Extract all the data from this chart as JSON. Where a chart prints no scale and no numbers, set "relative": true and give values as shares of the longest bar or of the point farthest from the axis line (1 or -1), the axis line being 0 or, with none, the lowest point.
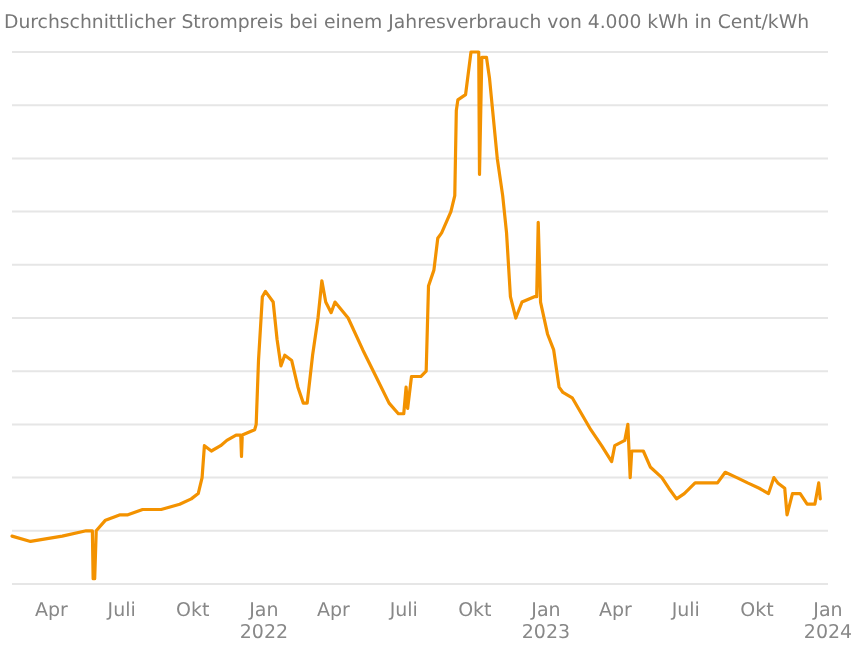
{
  "chart_data": {
    "type": "line",
    "title": "Durchschnittlicher Strompreis bei einem Jahresverbrauch von 4.000 kWh in Cent/kWh",
    "relative": true,
    "grid": "y",
    "marker": "none",
    "line_style": "solid",
    "xlim": [
      "2021-02-09",
      "2024-01-01"
    ],
    "xticks": [
      {
        "value": "2021-04-01",
        "label": "Apr"
      },
      {
        "value": "2021-07-01",
        "label": "Juli"
      },
      {
        "value": "2021-10-01",
        "label": "Okt"
      },
      {
        "value": "2022-01-01",
        "label": "Jan\n2022"
      },
      {
        "value": "2022-04-01",
        "label": "Apr"
      },
      {
        "value": "2022-07-01",
        "label": "Juli"
      },
      {
        "value": "2022-10-01",
        "label": "Okt"
      },
      {
        "value": "2023-01-01",
        "label": "Jan\n2023"
      },
      {
        "value": "2023-04-01",
        "label": "Apr"
      },
      {
        "value": "2023-07-01",
        "label": "Juli"
      },
      {
        "value": "2023-10-01",
        "label": "Okt"
      },
      {
        "value": "2024-01-01",
        "label": "Jan\n2024"
      }
    ],
    "x": [
      "2021-02-09",
      "2021-03-05",
      "2021-04-15",
      "2021-05-16",
      "2021-05-24",
      "2021-05-25",
      "2021-05-27",
      "2021-05-29",
      "2021-06-10",
      "2021-06-29",
      "2021-07-09",
      "2021-07-28",
      "2021-08-21",
      "2021-09-14",
      "2021-09-29",
      "2021-10-08",
      "2021-10-13",
      "2021-10-16",
      "2021-10-25",
      "2021-11-06",
      "2021-11-14",
      "2021-11-26",
      "2021-12-02",
      "2021-12-03",
      "2021-12-04",
      "2021-12-20",
      "2021-12-22",
      "2021-12-25",
      "2021-12-30",
      "2022-01-03",
      "2022-01-13",
      "2022-01-18",
      "2022-01-23",
      "2022-01-28",
      "2022-02-06",
      "2022-02-14",
      "2022-02-21",
      "2022-02-26",
      "2022-03-05",
      "2022-03-12",
      "2022-03-17",
      "2022-03-22",
      "2022-03-29",
      "2022-04-03",
      "2022-04-20",
      "2022-05-09",
      "2022-05-26",
      "2022-06-12",
      "2022-06-24",
      "2022-07-01",
      "2022-07-04",
      "2022-07-06",
      "2022-07-11",
      "2022-07-23",
      "2022-07-30",
      "2022-08-02",
      "2022-08-09",
      "2022-08-14",
      "2022-08-19",
      "2022-08-31",
      "2022-09-05",
      "2022-09-07",
      "2022-09-09",
      "2022-09-19",
      "2022-09-26",
      "2022-10-06",
      "2022-10-07",
      "2022-10-10",
      "2022-10-16",
      "2022-10-20",
      "2022-10-30",
      "2022-11-06",
      "2022-11-11",
      "2022-11-16",
      "2022-11-23",
      "2022-12-01",
      "2022-12-17",
      "2022-12-20",
      "2022-12-22",
      "2022-12-25",
      "2023-01-03",
      "2023-01-11",
      "2023-01-18",
      "2023-01-23",
      "2023-02-04",
      "2023-02-16",
      "2023-02-28",
      "2023-03-14",
      "2023-03-27",
      "2023-03-31",
      "2023-04-13",
      "2023-04-17",
      "2023-04-20",
      "2023-04-22",
      "2023-05-07",
      "2023-05-16",
      "2023-05-31",
      "2023-06-09",
      "2023-06-19",
      "2023-06-29",
      "2023-07-13",
      "2023-07-28",
      "2023-08-11",
      "2023-08-21",
      "2023-09-05",
      "2023-09-19",
      "2023-10-04",
      "2023-10-16",
      "2023-10-23",
      "2023-10-28",
      "2023-11-06",
      "2023-11-09",
      "2023-11-16",
      "2023-11-26",
      "2023-12-05",
      "2023-12-15",
      "2023-12-20",
      "2023-12-22"
    ],
    "series": [
      {
        "color": "#f39200",
        "values": [
          0.09,
          0.08,
          0.09,
          0.1,
          0.1,
          0.01,
          0.01,
          0.1,
          0.12,
          0.13,
          0.13,
          0.14,
          0.14,
          0.15,
          0.16,
          0.17,
          0.2,
          0.26,
          0.25,
          0.26,
          0.27,
          0.28,
          0.28,
          0.24,
          0.28,
          0.29,
          0.3,
          0.42,
          0.54,
          0.55,
          0.53,
          0.46,
          0.41,
          0.43,
          0.42,
          0.37,
          0.34,
          0.34,
          0.43,
          0.5,
          0.57,
          0.53,
          0.51,
          0.53,
          0.5,
          0.44,
          0.39,
          0.34,
          0.32,
          0.32,
          0.37,
          0.33,
          0.39,
          0.39,
          0.4,
          0.56,
          0.59,
          0.65,
          0.66,
          0.7,
          0.73,
          0.89,
          0.91,
          0.92,
          1.0,
          1.0,
          0.77,
          0.99,
          0.99,
          0.95,
          0.8,
          0.73,
          0.66,
          0.54,
          0.5,
          0.53,
          0.54,
          0.54,
          0.68,
          0.53,
          0.47,
          0.44,
          0.37,
          0.36,
          0.35,
          0.32,
          0.29,
          0.26,
          0.23,
          0.26,
          0.27,
          0.3,
          0.2,
          0.25,
          0.25,
          0.22,
          0.2,
          0.18,
          0.16,
          0.17,
          0.19,
          0.19,
          0.19,
          0.21,
          0.2,
          0.19,
          0.18,
          0.17,
          0.2,
          0.19,
          0.18,
          0.13,
          0.17,
          0.17,
          0.15,
          0.15,
          0.19,
          0.16
        ]
      }
    ]
  }
}
